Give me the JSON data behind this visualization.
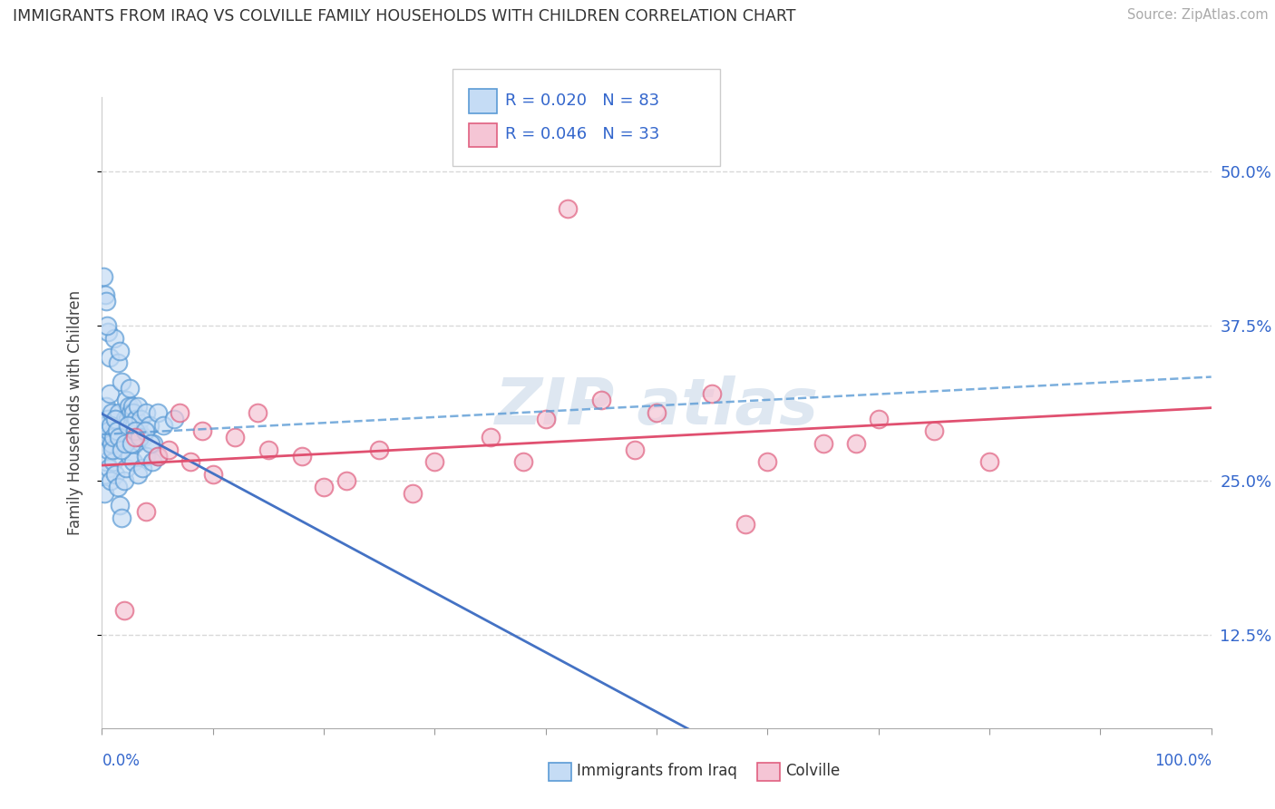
{
  "title": "IMMIGRANTS FROM IRAQ VS COLVILLE FAMILY HOUSEHOLDS WITH CHILDREN CORRELATION CHART",
  "source": "Source: ZipAtlas.com",
  "ylabel": "Family Households with Children",
  "ytick_labels": [
    "12.5%",
    "25.0%",
    "37.5%",
    "50.0%"
  ],
  "ytick_values": [
    12.5,
    25.0,
    37.5,
    50.0
  ],
  "xmin": 0,
  "xmax": 100,
  "ymin": 5,
  "ymax": 56,
  "legend_iraq_r": "R = 0.020",
  "legend_iraq_n": "N = 83",
  "legend_colville_r": "R = 0.046",
  "legend_colville_n": "N = 33",
  "blue_fill": "#c5dcf5",
  "blue_edge": "#5b9bd5",
  "pink_fill": "#f5c5d5",
  "pink_edge": "#e06080",
  "blue_line_color": "#4472c4",
  "pink_line_color": "#e05070",
  "title_color": "#333333",
  "source_color": "#aaaaaa",
  "legend_value_color": "#3366cc",
  "grid_color": "#d8d8d8",
  "watermark_color": "#c8d8e8",
  "iraq_x": [
    0.3,
    0.4,
    0.5,
    0.5,
    0.6,
    0.7,
    0.7,
    0.8,
    0.9,
    1.0,
    1.0,
    1.1,
    1.2,
    1.3,
    1.4,
    1.5,
    1.6,
    1.7,
    1.8,
    1.9,
    2.0,
    2.1,
    2.2,
    2.3,
    2.4,
    2.5,
    2.6,
    2.7,
    2.8,
    2.9,
    3.0,
    3.1,
    3.2,
    3.3,
    3.5,
    3.7,
    4.0,
    4.3,
    4.6,
    5.0,
    0.2,
    0.3,
    0.4,
    0.5,
    0.6,
    0.8,
    1.0,
    1.2,
    1.4,
    1.6,
    1.8,
    2.0,
    2.2,
    2.5,
    2.8,
    3.2,
    3.6,
    4.0,
    4.5,
    5.0,
    0.15,
    0.25,
    0.35,
    0.45,
    0.55,
    0.65,
    0.75,
    0.85,
    0.95,
    1.05,
    1.15,
    1.35,
    1.55,
    1.75,
    2.05,
    2.35,
    2.65,
    3.0,
    3.4,
    3.9,
    4.4,
    5.5,
    6.5
  ],
  "iraq_y": [
    29.5,
    31.0,
    30.0,
    37.0,
    29.0,
    32.0,
    35.0,
    28.5,
    30.5,
    29.0,
    27.5,
    36.5,
    28.0,
    30.0,
    34.5,
    30.5,
    35.5,
    29.5,
    33.0,
    29.0,
    28.5,
    30.0,
    31.5,
    30.0,
    31.0,
    32.5,
    30.5,
    31.0,
    30.5,
    29.5,
    28.0,
    30.0,
    31.0,
    29.0,
    30.0,
    28.5,
    30.5,
    29.5,
    28.0,
    30.5,
    24.0,
    25.5,
    26.5,
    27.5,
    26.0,
    25.0,
    26.5,
    25.5,
    24.5,
    23.0,
    22.0,
    25.0,
    26.0,
    27.0,
    26.5,
    25.5,
    26.0,
    27.0,
    26.5,
    27.0,
    41.5,
    40.0,
    39.5,
    37.5,
    28.5,
    29.0,
    29.5,
    28.0,
    27.5,
    28.5,
    30.0,
    29.0,
    28.5,
    27.5,
    28.0,
    29.5,
    28.0,
    29.0,
    28.5,
    29.0,
    28.0,
    29.5,
    30.0
  ],
  "colville_x": [
    3.0,
    5.0,
    7.0,
    8.0,
    10.0,
    12.0,
    15.0,
    18.0,
    22.0,
    25.0,
    30.0,
    35.0,
    40.0,
    45.0,
    50.0,
    55.0,
    60.0,
    65.0,
    70.0,
    75.0,
    4.0,
    6.0,
    9.0,
    14.0,
    20.0,
    28.0,
    38.0,
    48.0,
    58.0,
    68.0,
    2.0,
    80.0,
    42.0
  ],
  "colville_y": [
    28.5,
    27.0,
    30.5,
    26.5,
    25.5,
    28.5,
    27.5,
    27.0,
    25.0,
    27.5,
    26.5,
    28.5,
    30.0,
    31.5,
    30.5,
    32.0,
    26.5,
    28.0,
    30.0,
    29.0,
    22.5,
    27.5,
    29.0,
    30.5,
    24.5,
    24.0,
    26.5,
    27.5,
    21.5,
    28.0,
    14.5,
    26.5,
    47.0
  ]
}
